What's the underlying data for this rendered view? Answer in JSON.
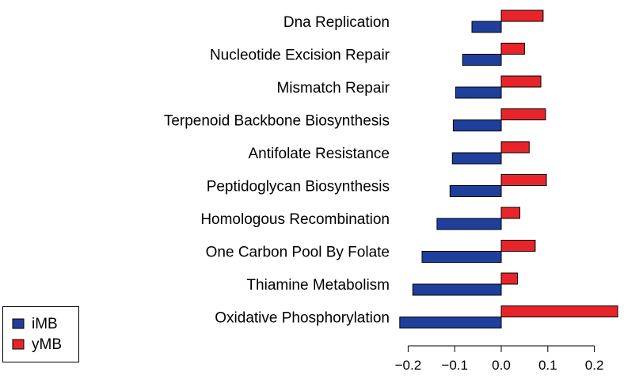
{
  "chart_data": {
    "type": "bar",
    "orientation": "horizontal",
    "categories": [
      "Dna Replication",
      "Nucleotide Excision Repair",
      "Mismatch Repair",
      "Terpenoid Backbone Biosynthesis",
      "Antifolate Resistance",
      "Peptidoglycan Biosynthesis",
      "Homologous Recombination",
      "One Carbon Pool By Folate",
      "Thiamine Metabolism",
      "Oxidative Phosphorylation"
    ],
    "series": [
      {
        "name": "iMB",
        "color": "#1f3f9c",
        "values": [
          -0.063,
          -0.083,
          -0.098,
          -0.103,
          -0.105,
          -0.11,
          -0.138,
          -0.17,
          -0.19,
          -0.218
        ]
      },
      {
        "name": "yMB",
        "color": "#e8242b",
        "values": [
          0.09,
          0.05,
          0.085,
          0.095,
          0.06,
          0.097,
          0.04,
          0.073,
          0.035,
          0.25
        ]
      }
    ],
    "xlim": [
      -0.22,
      0.25
    ],
    "xticks": [
      -0.2,
      -0.1,
      0.0,
      0.1,
      0.2
    ],
    "xtick_labels": [
      "−0.2",
      "−0.1",
      "0.0",
      "0.1",
      "0.2"
    ],
    "title": "",
    "xlabel": "",
    "ylabel": "",
    "grid": false,
    "legend_position": "bottom-left"
  }
}
